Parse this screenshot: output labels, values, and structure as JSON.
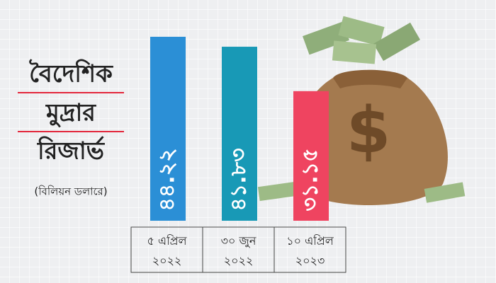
{
  "chart_data": {
    "type": "bar",
    "title": [
      "বৈদেশিক",
      "মুদ্রার",
      "রিজার্ভ"
    ],
    "subtitle": "(বিলিয়ন ডলারে)",
    "categories": [
      "৫ এপ্রিল ২০২২",
      "৩০ জুন ২০২২",
      "১০ এপ্রিল ২০২৩"
    ],
    "values": [
      44.22,
      41.83,
      31.15
    ],
    "value_labels": [
      "৪৪.২২",
      "৪১.৮৩",
      "৩১.১৫"
    ],
    "colors": [
      "#2b8fd6",
      "#1899b6",
      "#ef4460"
    ]
  }
}
